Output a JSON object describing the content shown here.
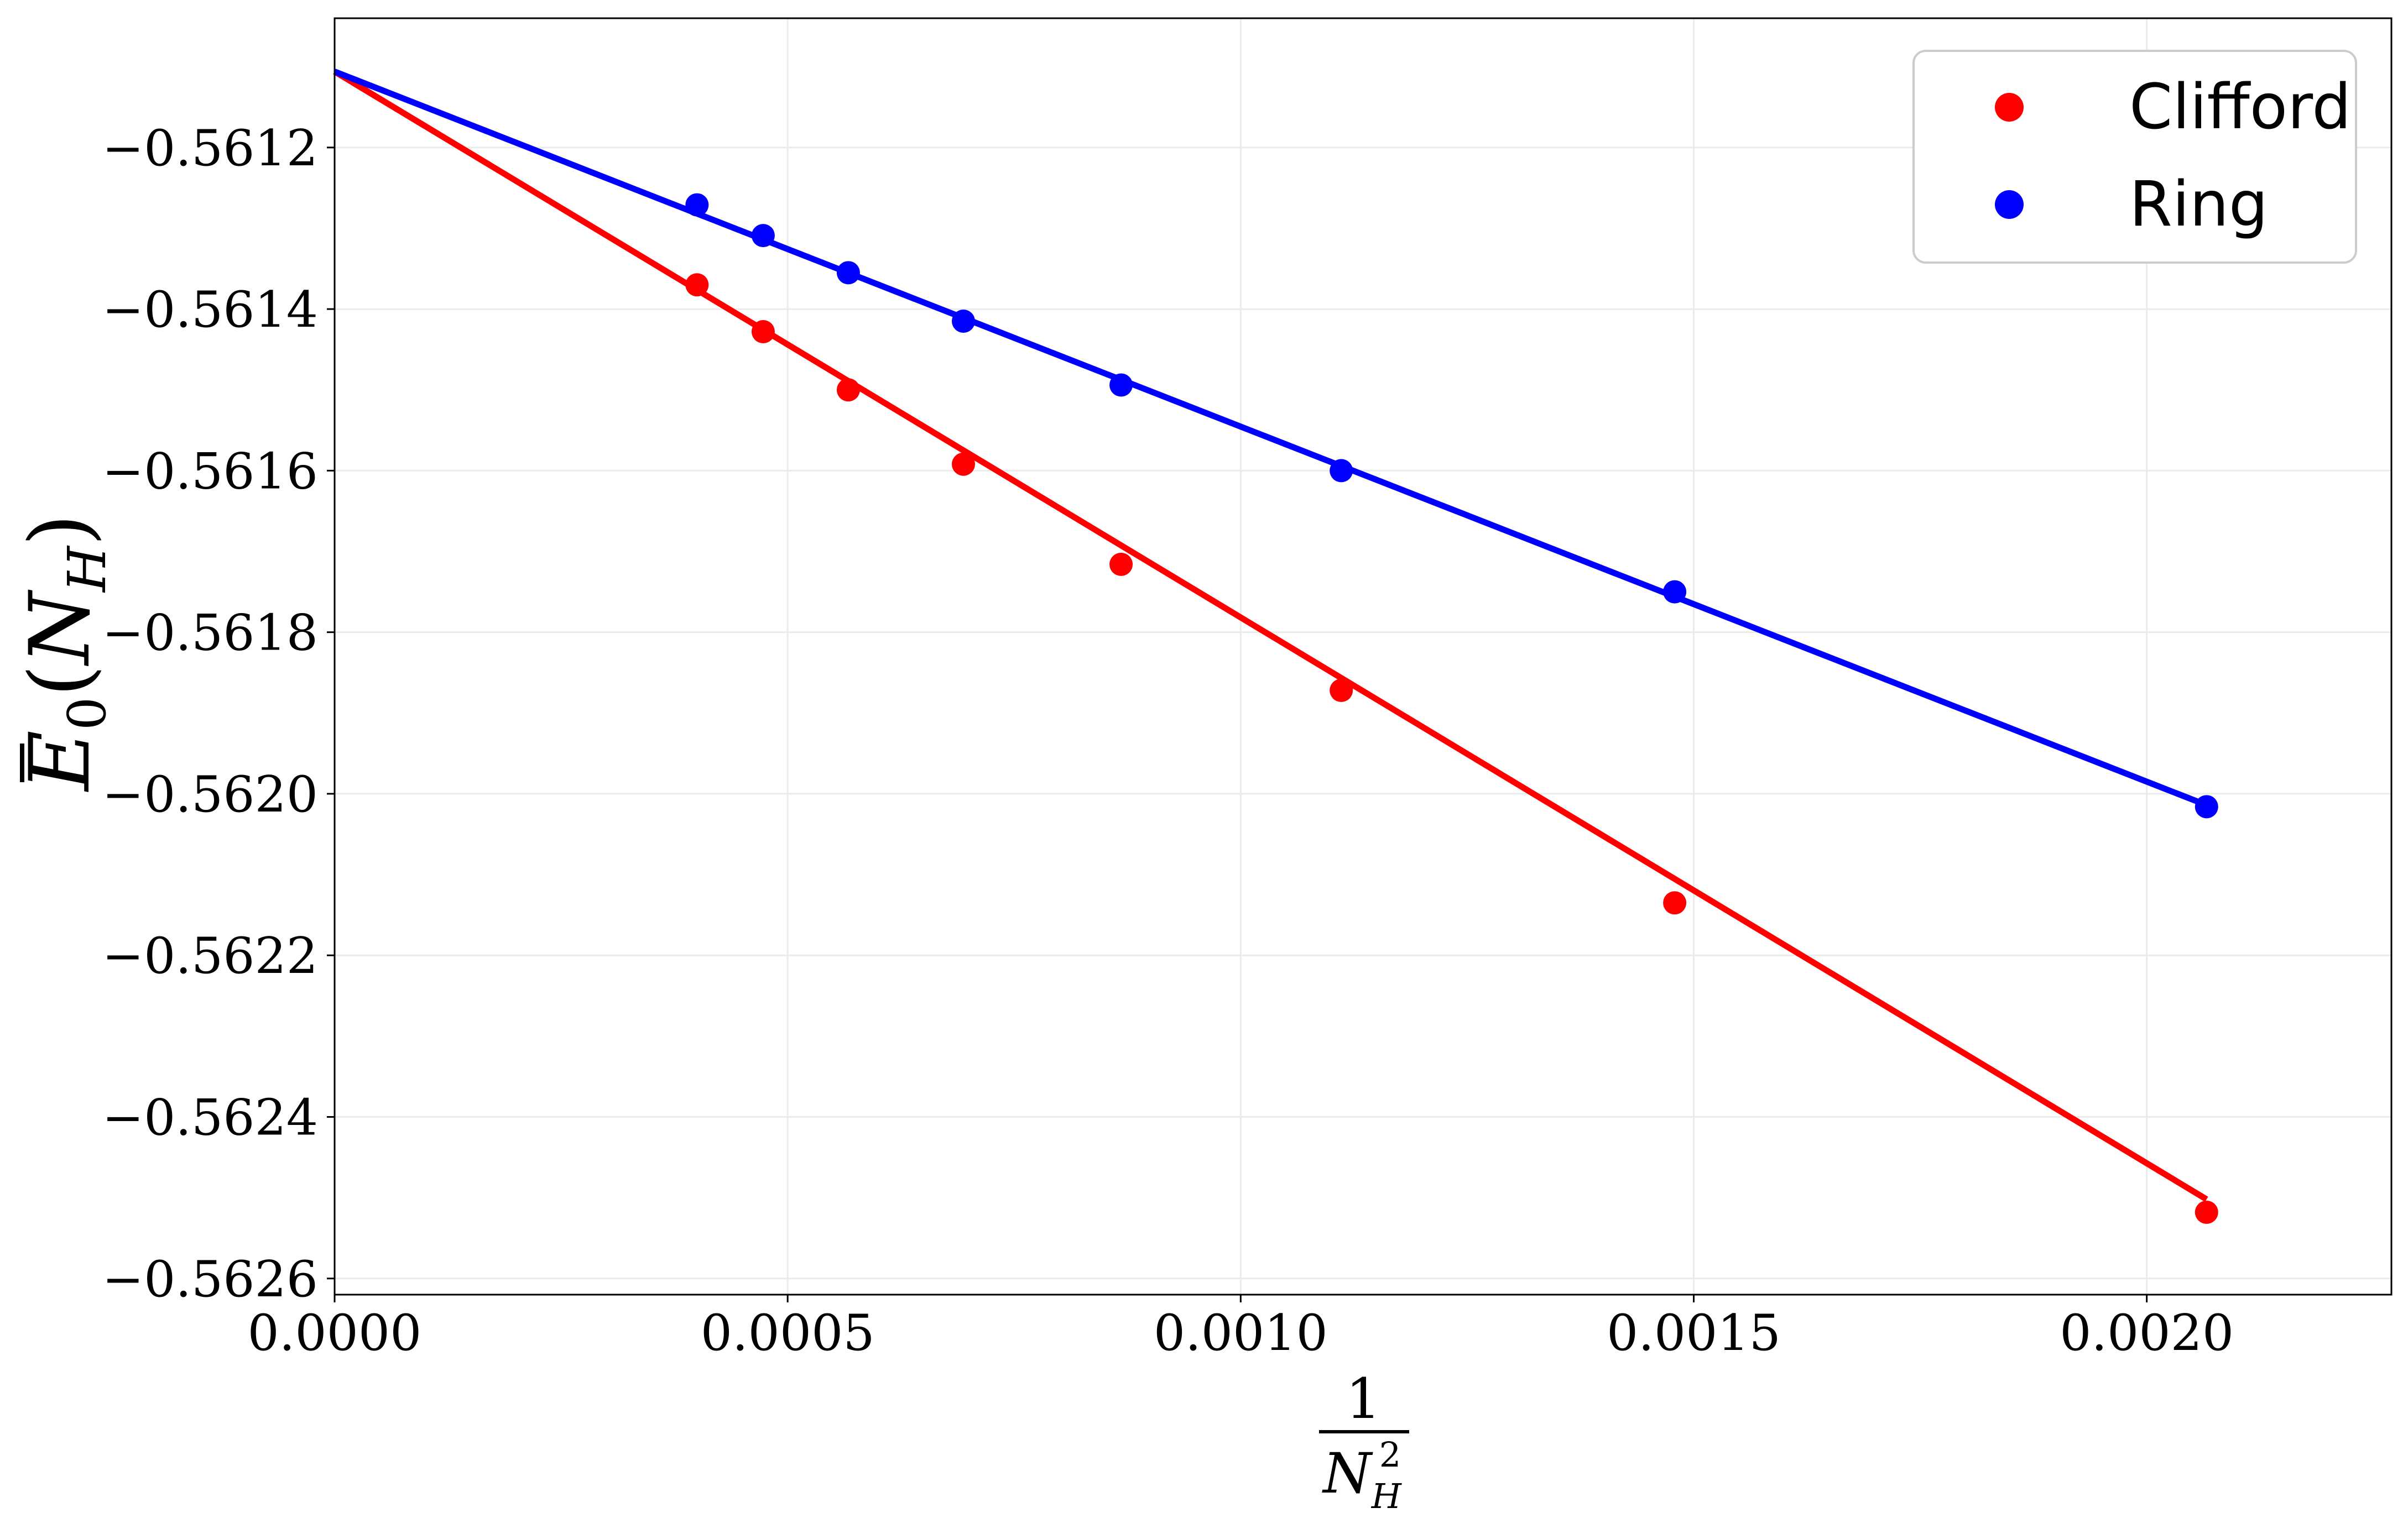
{
  "chart_data": {
    "type": "scatter",
    "xlabel": "1/N_H^2",
    "ylabel": "Ē_0(N_H)",
    "xlim": [
      0,
      0.00227
    ],
    "ylim": [
      -0.56262,
      -0.56104
    ],
    "x_ticks": [
      0.0,
      0.0005,
      0.001,
      0.0015,
      0.002
    ],
    "x_tick_labels": [
      "0.0000",
      "0.0005",
      "0.0010",
      "0.0015",
      "0.0020"
    ],
    "y_ticks": [
      -0.5612,
      -0.5614,
      -0.5616,
      -0.5618,
      -0.562,
      -0.5622,
      -0.5624,
      -0.5626
    ],
    "y_tick_labels": [
      "−0.5612",
      "−0.5614",
      "−0.5616",
      "−0.5618",
      "−0.5620",
      "−0.5622",
      "−0.5624",
      "−0.5626"
    ],
    "grid": true,
    "legend_position": "top-right",
    "series": [
      {
        "name": "Clifford",
        "color": "#ff0000",
        "x": [
          0.0004,
          0.000473,
          0.000567,
          0.000694,
          0.000868,
          0.001111,
          0.001479,
          0.002066
        ],
        "y": [
          -0.56137,
          -0.561428,
          -0.5615,
          -0.561592,
          -0.561716,
          -0.561872,
          -0.562135,
          -0.562518
        ],
        "fit": {
          "x": [
            0.0,
            0.002066
          ],
          "y": [
            -0.561106,
            -0.562502
          ]
        }
      },
      {
        "name": "Ring",
        "color": "#0000ff",
        "x": [
          0.0004,
          0.000473,
          0.000567,
          0.000694,
          0.000868,
          0.001111,
          0.001479,
          0.002066
        ],
        "y": [
          -0.561271,
          -0.561309,
          -0.561355,
          -0.561415,
          -0.561494,
          -0.5616,
          -0.56175,
          -0.562016
        ],
        "fit": {
          "x": [
            0.0,
            0.002066
          ],
          "y": [
            -0.561106,
            -0.562014
          ]
        }
      }
    ]
  }
}
